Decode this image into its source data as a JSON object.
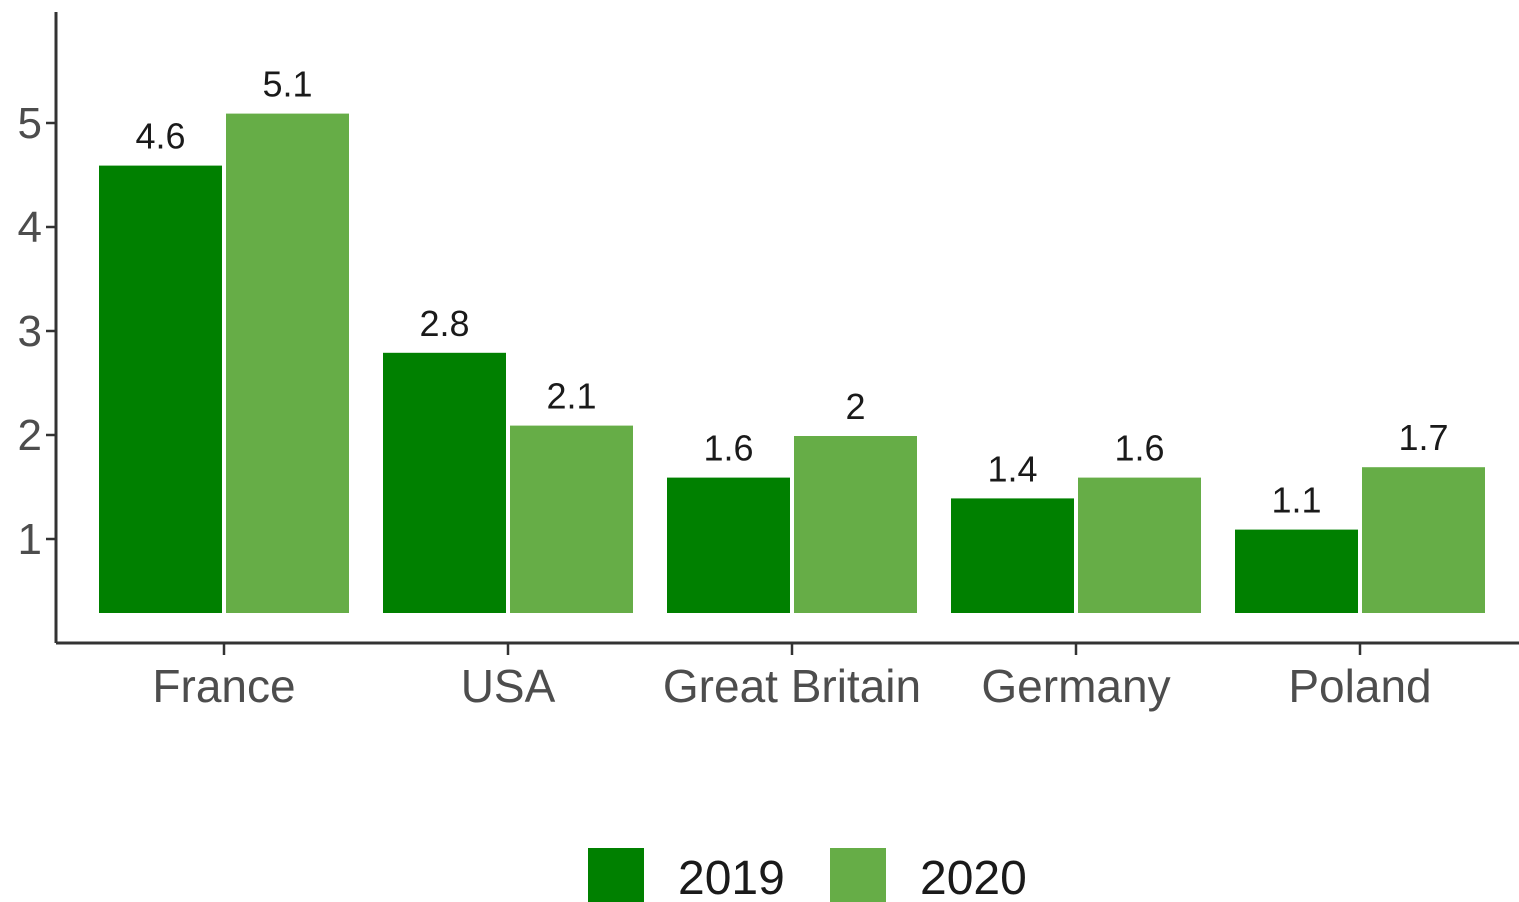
{
  "chart_data": {
    "type": "bar",
    "categories": [
      "France",
      "USA",
      "Great Britain",
      "Germany",
      "Poland"
    ],
    "series": [
      {
        "name": "2019",
        "color": "#008000",
        "values": [
          4.6,
          2.8,
          1.6,
          1.4,
          1.1
        ]
      },
      {
        "name": "2020",
        "color": "#66ad47",
        "values": [
          5.1,
          2.1,
          2,
          1.6,
          1.7
        ]
      }
    ],
    "value_labels": [
      [
        "4.6",
        "2.8",
        "1.6",
        "1.4",
        "1.1"
      ],
      [
        "5.1",
        "2.1",
        "2",
        "1.6",
        "1.7"
      ]
    ],
    "y_ticks": [
      1,
      2,
      3,
      4,
      5
    ],
    "ylim": [
      0,
      5.65
    ],
    "title": "",
    "xlabel": "",
    "ylabel": "",
    "grid": false,
    "legend_position": "bottom"
  }
}
